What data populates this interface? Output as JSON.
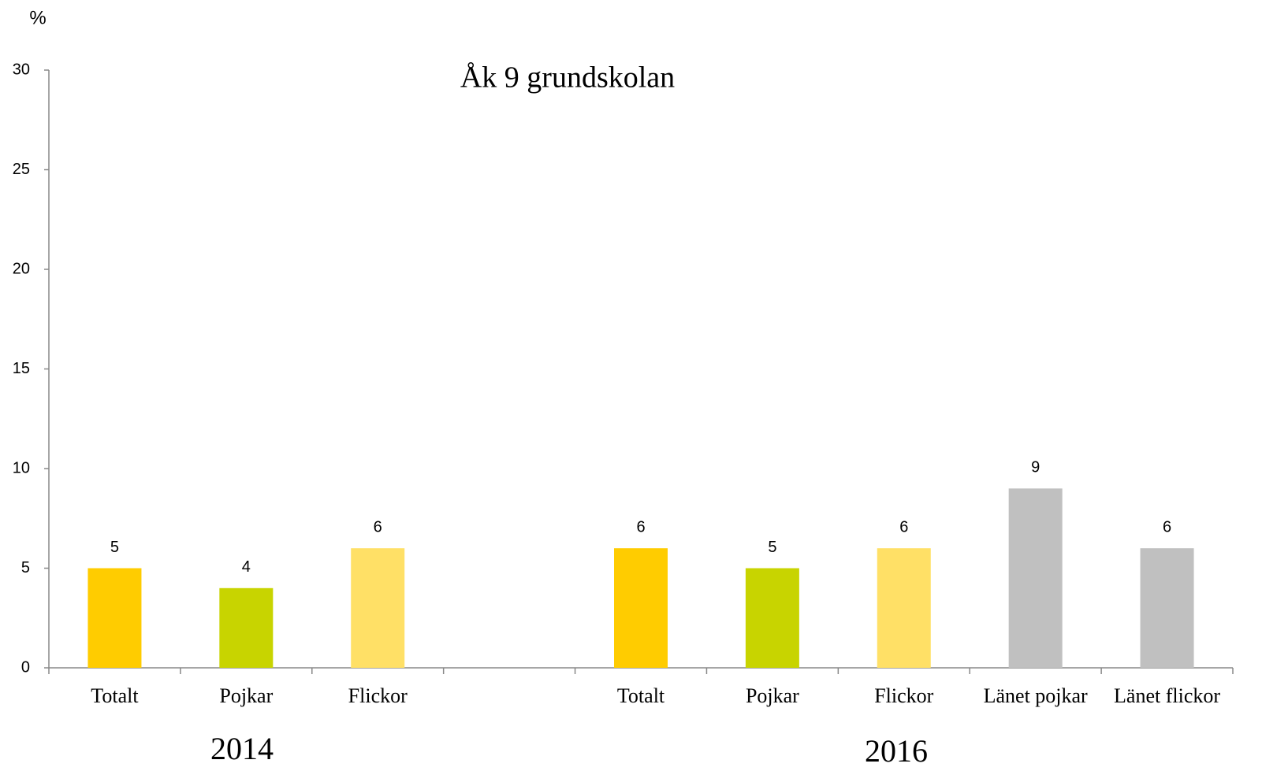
{
  "chart_data": {
    "type": "bar",
    "title": "Åk 9 grundskolan",
    "y_label": "%",
    "categories": [
      "Totalt",
      "Pojkar",
      "Flickor",
      null,
      "Totalt",
      "Pojkar",
      "Flickor",
      "Länet pojkar",
      "Länet flickor"
    ],
    "values": [
      5,
      4,
      6,
      null,
      6,
      5,
      6,
      9,
      6
    ],
    "colors": [
      "#ffcc00",
      "#c8d400",
      "#ffe066",
      null,
      "#ffcc00",
      "#c8d400",
      "#ffe066",
      "#c0c0c0",
      "#c0c0c0"
    ],
    "groups": [
      "2014",
      "2016"
    ],
    "ylim": [
      0,
      30
    ],
    "yticks": [
      0,
      5,
      10,
      15,
      20,
      25,
      30
    ],
    "grid": false
  }
}
